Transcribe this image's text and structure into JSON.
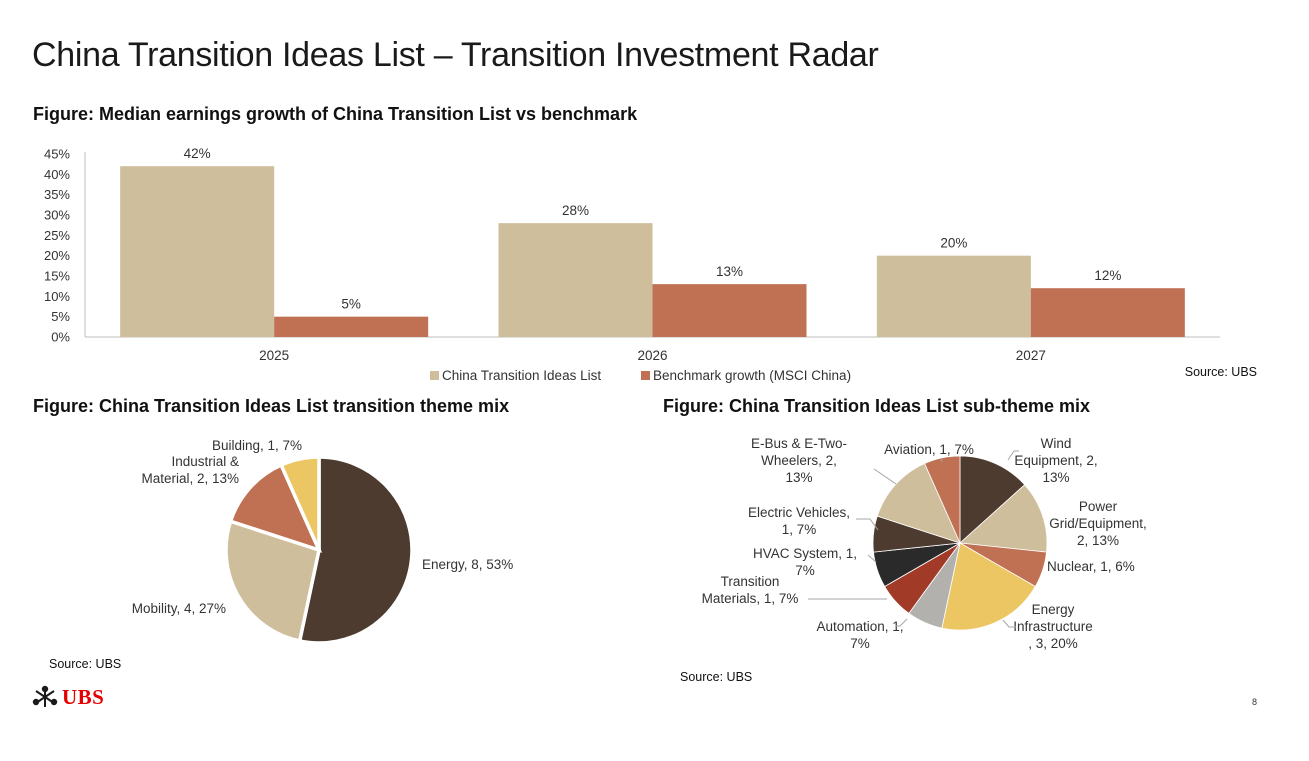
{
  "page": {
    "title": "China Transition Ideas List – Transition Investment Radar",
    "page_number": "8",
    "logo_text": "UBS"
  },
  "figures": {
    "bar_title": "Figure: Median earnings growth of China Transition List vs benchmark",
    "bar_source": "Source: UBS",
    "theme_title": "Figure: China Transition Ideas List transition theme mix",
    "theme_source": "Source: UBS",
    "subtheme_title": "Figure: China Transition Ideas List sub-theme mix",
    "subtheme_source": "Source: UBS"
  },
  "colors": {
    "tan": "#CFBE9C",
    "terracotta": "#C07153",
    "dark_brown": "#4E3B30",
    "gold": "#EBC662",
    "red": "#A23A28",
    "black": "#2A2A2A",
    "grey": "#B3B1AE"
  },
  "chart_data": [
    {
      "type": "bar",
      "title": "Figure: Median earnings growth of China Transition List vs benchmark",
      "categories": [
        "2025",
        "2026",
        "2027"
      ],
      "series": [
        {
          "name": "China Transition Ideas List",
          "values": [
            42,
            28,
            20
          ],
          "labels": [
            "42%",
            "28%",
            "20%"
          ],
          "color": "#CFBE9C"
        },
        {
          "name": "Benchmark growth (MSCI China)",
          "values": [
            5,
            13,
            12
          ],
          "labels": [
            "5%",
            "13%",
            "12%"
          ],
          "color": "#C07153"
        }
      ],
      "ylim": [
        0,
        45
      ],
      "yticks": [
        0,
        5,
        10,
        15,
        20,
        25,
        30,
        35,
        40,
        45
      ],
      "ytick_labels": [
        "0%",
        "5%",
        "10%",
        "15%",
        "20%",
        "25%",
        "30%",
        "35%",
        "40%",
        "45%"
      ],
      "legend": "bottom",
      "grid": false
    },
    {
      "type": "pie",
      "title": "Figure: China Transition Ideas List transition theme mix",
      "slices": [
        {
          "name": "Energy",
          "value": 8,
          "percent": 53,
          "label": "Energy, 8, 53%",
          "color": "#4E3B30"
        },
        {
          "name": "Mobility",
          "value": 4,
          "percent": 27,
          "label": "Mobility, 4, 27%",
          "color": "#CFBE9C"
        },
        {
          "name": "Industrial & Material",
          "value": 2,
          "percent": 13,
          "label_lines": [
            "Industrial &",
            "Material, 2, 13%"
          ],
          "color": "#C07153"
        },
        {
          "name": "Building",
          "value": 1,
          "percent": 7,
          "label": "Building, 1, 7%",
          "color": "#EBC662"
        }
      ]
    },
    {
      "type": "pie",
      "title": "Figure: China Transition Ideas List sub-theme mix",
      "slices": [
        {
          "name": "Wind Equipment",
          "value": 2,
          "percent": 13,
          "label_lines": [
            "Wind",
            "Equipment, 2,",
            "13%"
          ],
          "color": "#4E3B30"
        },
        {
          "name": "Power Grid/Equipment",
          "value": 2,
          "percent": 13,
          "label_lines": [
            "Power",
            "Grid/Equipment,",
            "2, 13%"
          ],
          "color": "#CFBE9C"
        },
        {
          "name": "Nuclear",
          "value": 1,
          "percent": 6,
          "label": "Nuclear, 1, 6%",
          "color": "#C07153"
        },
        {
          "name": "Energy Infrastructure",
          "value": 3,
          "percent": 20,
          "label_lines": [
            "Energy",
            "Infrastructure",
            ", 3, 20%"
          ],
          "color": "#EBC662"
        },
        {
          "name": "Automation",
          "value": 1,
          "percent": 7,
          "label_lines": [
            "Automation, 1,",
            "7%"
          ],
          "color": "#B3B1AE"
        },
        {
          "name": "Transition Materials",
          "value": 1,
          "percent": 7,
          "label_lines": [
            "Transition",
            "Materials, 1, 7%"
          ],
          "color": "#A23A28"
        },
        {
          "name": "HVAC System",
          "value": 1,
          "percent": 7,
          "label_lines": [
            "HVAC System, 1,",
            "7%"
          ],
          "color": "#2A2A2A"
        },
        {
          "name": "Electric Vehicles",
          "value": 1,
          "percent": 7,
          "label_lines": [
            "Electric Vehicles,",
            "1, 7%"
          ],
          "color": "#4E3B30"
        },
        {
          "name": "E-Bus & E-Two-Wheelers",
          "value": 2,
          "percent": 13,
          "label_lines": [
            "E-Bus & E-Two-",
            "Wheelers, 2,",
            "13%"
          ],
          "color": "#CFBE9C"
        },
        {
          "name": "Aviation",
          "value": 1,
          "percent": 7,
          "label": "Aviation, 1, 7%",
          "color": "#C07153"
        }
      ]
    }
  ]
}
